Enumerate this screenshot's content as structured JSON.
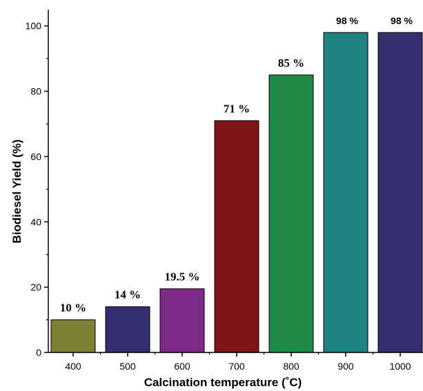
{
  "chart_data": {
    "type": "bar",
    "title": "",
    "xlabel": "Calcination temperature (˚C)",
    "ylabel": "Biodiesel Yield (%)",
    "ylim": [
      0,
      105
    ],
    "yticks": [
      0,
      20,
      40,
      60,
      80,
      100
    ],
    "categories": [
      "400",
      "500",
      "600",
      "700",
      "800",
      "900",
      "1000"
    ],
    "values": [
      10,
      14,
      19.5,
      71,
      85,
      98,
      98
    ],
    "data_labels": [
      "10 %",
      "14 %",
      "19.5 %",
      "71 %",
      "85 %",
      "98 %",
      "98 %"
    ],
    "bar_colors": [
      "#7f7f33",
      "#332e6e",
      "#7f2a88",
      "#7f1416",
      "#1f8a47",
      "#1f8282",
      "#332e6e"
    ],
    "grid": false,
    "legend": "none"
  }
}
